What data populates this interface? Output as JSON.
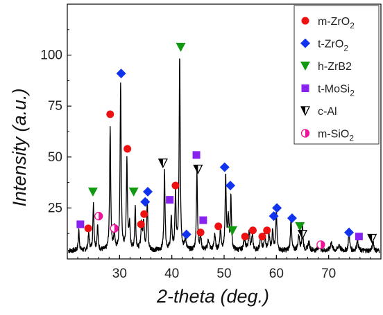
{
  "chart_data": {
    "type": "line",
    "xlabel": "2-theta (deg.)",
    "ylabel": "Intensity (a.u.)",
    "xlim": [
      20,
      80
    ],
    "ylim": [
      0,
      125
    ],
    "x_ticks": [
      30,
      40,
      50,
      60,
      70
    ],
    "y_ticks": [
      25,
      50,
      75,
      100
    ],
    "grid": false,
    "legend_position": "top-right",
    "colors": {
      "line": "#000000",
      "m_ZrO2": "#ee1111",
      "t_ZrO2": "#1133ee",
      "h_ZrB2": "#119911",
      "t_MoSi2": "#8822ee",
      "c_Al": "#000000",
      "m_SiO2": "#ee1199"
    },
    "legend": [
      {
        "key": "m_ZrO2",
        "label": "m-ZrO",
        "sub": "2",
        "marker": "circle"
      },
      {
        "key": "t_ZrO2",
        "label": "t-ZrO",
        "sub": "2",
        "marker": "diamond"
      },
      {
        "key": "h_ZrB2",
        "label": "h-ZrB2",
        "sub": "",
        "marker": "triangle-down"
      },
      {
        "key": "t_MoSi2",
        "label": "t-MoSi",
        "sub": "2",
        "marker": "square"
      },
      {
        "key": "c_Al",
        "label": "c-Al",
        "sub": "",
        "marker": "half-triangle"
      },
      {
        "key": "m_SiO2",
        "label": "m-SiO",
        "sub": "2",
        "marker": "half-circle"
      }
    ],
    "pattern": {
      "baseline": 4,
      "noise": 1.2,
      "peaks": [
        [
          22.2,
          10,
          0.12
        ],
        [
          24.1,
          8,
          0.15
        ],
        [
          25.0,
          23,
          0.12
        ],
        [
          25.8,
          12,
          0.12
        ],
        [
          28.2,
          61,
          0.12
        ],
        [
          29.0,
          10,
          0.12
        ],
        [
          30.2,
          82,
          0.12
        ],
        [
          31.4,
          44,
          0.12
        ],
        [
          31.9,
          12,
          0.15
        ],
        [
          33.0,
          21,
          0.12
        ],
        [
          34.2,
          12,
          0.15
        ],
        [
          34.6,
          14,
          0.15
        ],
        [
          35.3,
          24,
          0.12
        ],
        [
          38.6,
          39,
          0.12
        ],
        [
          39.9,
          15,
          0.15
        ],
        [
          40.7,
          28,
          0.12
        ],
        [
          41.5,
          96,
          0.12
        ],
        [
          42.6,
          6,
          0.15
        ],
        [
          44.8,
          38,
          0.12
        ],
        [
          45.5,
          7,
          0.15
        ],
        [
          47.0,
          5,
          0.2
        ],
        [
          48.2,
          8,
          0.15
        ],
        [
          49.3,
          10,
          0.15
        ],
        [
          50.3,
          36,
          0.12
        ],
        [
          50.8,
          16,
          0.15
        ],
        [
          51.3,
          26,
          0.12
        ],
        [
          53.9,
          6,
          0.2
        ],
        [
          54.8,
          9,
          0.15
        ],
        [
          55.4,
          7,
          0.15
        ],
        [
          57.0,
          6,
          0.2
        ],
        [
          57.8,
          7,
          0.15
        ],
        [
          58.6,
          8,
          0.15
        ],
        [
          59.3,
          10,
          0.15
        ],
        [
          60.0,
          19,
          0.12
        ],
        [
          62.8,
          17,
          0.12
        ],
        [
          64.3,
          7,
          0.2
        ],
        [
          65.0,
          12,
          0.12
        ],
        [
          66.2,
          4,
          0.2
        ],
        [
          68.2,
          3,
          0.2
        ],
        [
          70.5,
          4,
          0.2
        ],
        [
          72.0,
          3,
          0.2
        ],
        [
          73.9,
          11,
          0.12
        ],
        [
          75.5,
          6,
          0.15
        ],
        [
          78.5,
          5,
          0.15
        ]
      ]
    },
    "markers": [
      {
        "key": "m_ZrO2",
        "points": [
          [
            24.0,
            15
          ],
          [
            28.2,
            71
          ],
          [
            31.5,
            54
          ],
          [
            34.1,
            17
          ],
          [
            34.7,
            22
          ],
          [
            40.7,
            36
          ],
          [
            45.5,
            13
          ],
          [
            48.9,
            16
          ],
          [
            54.0,
            11
          ],
          [
            55.5,
            14
          ],
          [
            57.3,
            11
          ],
          [
            58.2,
            14
          ]
        ]
      },
      {
        "key": "t_ZrO2",
        "points": [
          [
            30.3,
            91
          ],
          [
            34.9,
            28
          ],
          [
            35.4,
            33
          ],
          [
            42.8,
            12
          ],
          [
            50.1,
            45
          ],
          [
            51.2,
            36
          ],
          [
            59.5,
            21
          ],
          [
            60.1,
            25
          ],
          [
            63.0,
            20
          ],
          [
            73.9,
            13
          ]
        ]
      },
      {
        "key": "h_ZrB2",
        "points": [
          [
            24.9,
            33
          ],
          [
            32.7,
            33
          ],
          [
            41.7,
            104
          ],
          [
            51.6,
            14
          ],
          [
            64.5,
            16
          ]
        ]
      },
      {
        "key": "t_MoSi2",
        "points": [
          [
            22.5,
            17
          ],
          [
            39.6,
            29
          ],
          [
            44.7,
            51
          ],
          [
            46.0,
            19
          ],
          [
            75.8,
            11
          ]
        ]
      },
      {
        "key": "c_Al",
        "points": [
          [
            38.3,
            47
          ],
          [
            45.0,
            44
          ],
          [
            65.0,
            12
          ],
          [
            78.3,
            10
          ]
        ]
      },
      {
        "key": "m_SiO2",
        "points": [
          [
            26.0,
            21
          ],
          [
            29.0,
            15
          ],
          [
            68.5,
            7
          ]
        ]
      }
    ]
  }
}
